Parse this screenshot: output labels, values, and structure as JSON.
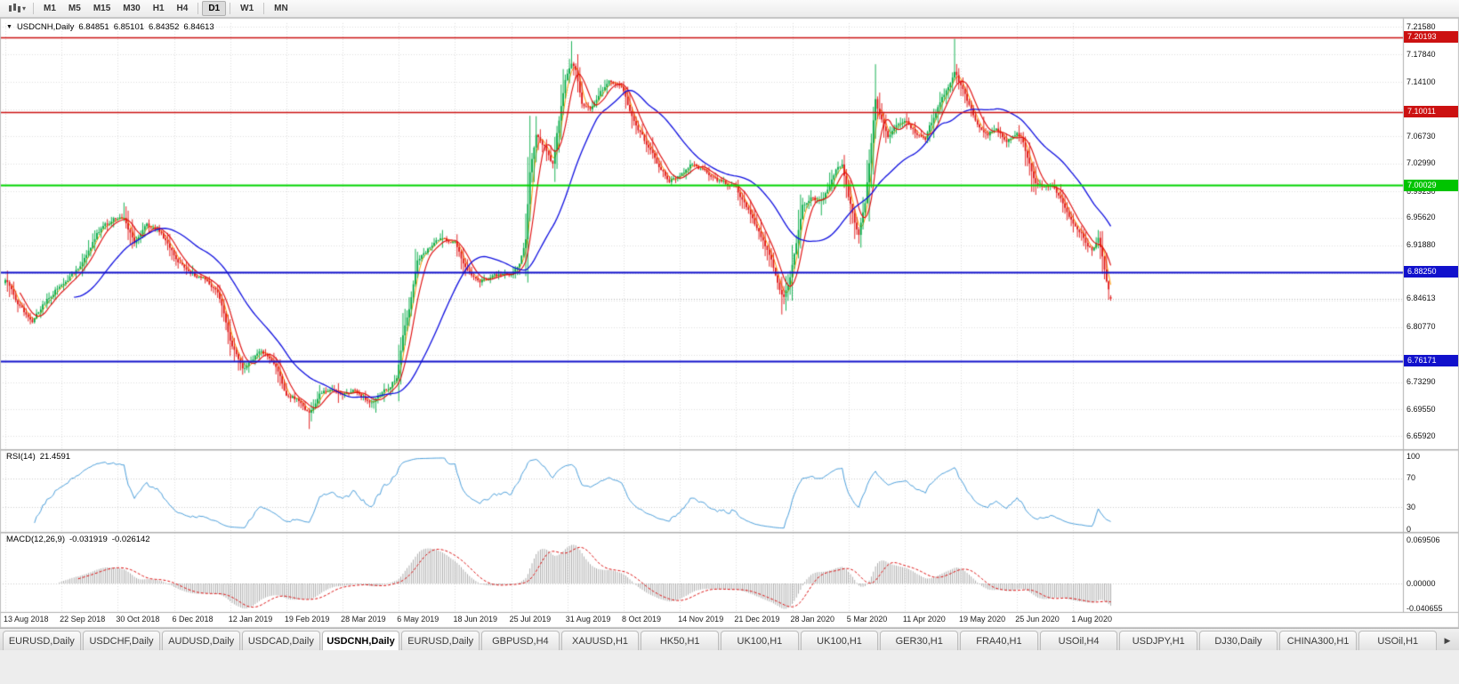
{
  "icons": {
    "caret_down": "▾",
    "title_caret": "▼",
    "scroll_right": "▶"
  },
  "toolbar": {
    "timeframes": [
      {
        "label": "M1",
        "active": false
      },
      {
        "label": "M5",
        "active": false
      },
      {
        "label": "M15",
        "active": false
      },
      {
        "label": "M30",
        "active": false
      },
      {
        "label": "H1",
        "active": false
      },
      {
        "label": "H4",
        "active": false
      },
      {
        "label": "D1",
        "active": true
      },
      {
        "label": "W1",
        "active": false
      },
      {
        "label": "MN",
        "active": false
      }
    ]
  },
  "chart": {
    "symbol_period": "USDCNH,Daily",
    "open": "6.84851",
    "high": "6.85101",
    "low": "6.84352",
    "close": "6.84613"
  },
  "price_axis": {
    "ticks": [
      {
        "label": "7.21580",
        "value": 7.2158
      },
      {
        "label": "7.17840",
        "value": 7.1784
      },
      {
        "label": "7.14100",
        "value": 7.141
      },
      {
        "label": "7.06730",
        "value": 7.0673
      },
      {
        "label": "7.02990",
        "value": 7.0299
      },
      {
        "label": "6.99230",
        "value": 6.9923
      },
      {
        "label": "6.95620",
        "value": 6.9562
      },
      {
        "label": "6.91880",
        "value": 6.9188
      },
      {
        "label": "6.80770",
        "value": 6.8077
      },
      {
        "label": "6.73290",
        "value": 6.7329
      },
      {
        "label": "6.69550",
        "value": 6.6955
      },
      {
        "label": "6.65920",
        "value": 6.6592
      }
    ],
    "badges": [
      {
        "label": "7.20193",
        "value": 7.20193,
        "color": "#CC1111"
      },
      {
        "label": "7.10011",
        "value": 7.10011,
        "color": "#CC1111"
      },
      {
        "label": "7.00029",
        "value": 7.00029,
        "color": "#00C400"
      },
      {
        "label": "6.88250",
        "value": 6.8825,
        "color": "#1111CC"
      },
      {
        "label": "6.76171",
        "value": 6.76171,
        "color": "#1111CC"
      }
    ],
    "current": {
      "label": "6.84613",
      "value": 6.84613
    }
  },
  "rsi_panel": {
    "name": "RSI(14)",
    "value": "21.4591",
    "axis": [
      {
        "label": "100",
        "value": 100
      },
      {
        "label": "70",
        "value": 70
      },
      {
        "label": "30",
        "value": 30
      },
      {
        "label": "0",
        "value": 0
      }
    ]
  },
  "macd_panel": {
    "name": "MACD(12,26,9)",
    "value_main": "-0.031919",
    "value_signal": "-0.026142",
    "axis": [
      {
        "label": "0.069506",
        "value": 0.069506
      },
      {
        "label": "0.00000",
        "value": 0
      },
      {
        "label": "-0.040655",
        "value": -0.040655
      }
    ]
  },
  "date_axis": {
    "labels": [
      "13 Aug 2018",
      "22 Sep 2018",
      "30 Oct 2018",
      "6 Dec 2018",
      "12 Jan 2019",
      "19 Feb 2019",
      "28 Mar 2019",
      "6 May 2019",
      "18 Jun 2019",
      "25 Jul 2019",
      "31 Aug 2019",
      "8 Oct 2019",
      "14 Nov 2019",
      "21 Dec 2019",
      "28 Jan 2020",
      "5 Mar 2020",
      "11 Apr 2020",
      "19 May 2020",
      "25 Jun 2020",
      "1 Aug 2020"
    ],
    "ticks_every_candles": 27
  },
  "chart_data": {
    "type": "candlestick",
    "symbol": "USDCNH",
    "period": "Daily",
    "num_candles": 532,
    "visible_price_range": {
      "top": 7.221,
      "bottom": 6.644
    },
    "grid_prices": [
      7.2158,
      7.1784,
      7.141,
      7.1036,
      7.0673,
      7.0299,
      6.9923,
      6.9562,
      6.9188,
      6.8814,
      6.844,
      6.8077,
      6.7703,
      6.7329,
      6.6955,
      6.6592
    ],
    "last_candle": {
      "open": 6.84851,
      "high": 6.85101,
      "low": 6.84352,
      "close": 6.84613
    },
    "close_waypoints": [
      [
        0,
        6.872
      ],
      [
        6,
        6.84
      ],
      [
        13,
        6.815
      ],
      [
        20,
        6.845
      ],
      [
        27,
        6.868
      ],
      [
        36,
        6.888
      ],
      [
        44,
        6.935
      ],
      [
        52,
        6.955
      ],
      [
        57,
        6.96
      ],
      [
        62,
        6.92
      ],
      [
        68,
        6.945
      ],
      [
        75,
        6.938
      ],
      [
        81,
        6.905
      ],
      [
        88,
        6.882
      ],
      [
        95,
        6.874
      ],
      [
        102,
        6.856
      ],
      [
        108,
        6.79
      ],
      [
        114,
        6.748
      ],
      [
        122,
        6.776
      ],
      [
        127,
        6.765
      ],
      [
        130,
        6.752
      ],
      [
        135,
        6.716
      ],
      [
        140,
        6.71
      ],
      [
        146,
        6.692
      ],
      [
        151,
        6.716
      ],
      [
        158,
        6.724
      ],
      [
        162,
        6.712
      ],
      [
        168,
        6.72
      ],
      [
        176,
        6.704
      ],
      [
        184,
        6.726
      ],
      [
        188,
        6.74
      ],
      [
        191,
        6.795
      ],
      [
        194,
        6.83
      ],
      [
        198,
        6.9
      ],
      [
        204,
        6.917
      ],
      [
        210,
        6.928
      ],
      [
        216,
        6.924
      ],
      [
        222,
        6.882
      ],
      [
        228,
        6.868
      ],
      [
        234,
        6.877
      ],
      [
        243,
        6.879
      ],
      [
        247,
        6.895
      ],
      [
        250,
        6.93
      ],
      [
        252,
        7.02
      ],
      [
        255,
        7.07
      ],
      [
        259,
        7.055
      ],
      [
        263,
        7.03
      ],
      [
        266,
        7.09
      ],
      [
        269,
        7.145
      ],
      [
        272,
        7.168
      ],
      [
        274,
        7.155
      ],
      [
        277,
        7.11
      ],
      [
        281,
        7.105
      ],
      [
        285,
        7.125
      ],
      [
        290,
        7.142
      ],
      [
        296,
        7.135
      ],
      [
        301,
        7.095
      ],
      [
        307,
        7.062
      ],
      [
        313,
        7.03
      ],
      [
        319,
        7.005
      ],
      [
        324,
        7.012
      ],
      [
        329,
        7.028
      ],
      [
        335,
        7.022
      ],
      [
        341,
        7.008
      ],
      [
        347,
        7.002
      ],
      [
        351,
        6.998
      ],
      [
        356,
        6.972
      ],
      [
        362,
        6.937
      ],
      [
        368,
        6.896
      ],
      [
        372,
        6.862
      ],
      [
        374,
        6.848
      ],
      [
        377,
        6.875
      ],
      [
        380,
        6.922
      ],
      [
        383,
        6.972
      ],
      [
        387,
        6.985
      ],
      [
        391,
        6.978
      ],
      [
        395,
        6.992
      ],
      [
        399,
        7.022
      ],
      [
        402,
        7.028
      ],
      [
        405,
        6.988
      ],
      [
        408,
        6.948
      ],
      [
        410,
        6.935
      ],
      [
        413,
        6.975
      ],
      [
        416,
        7.06
      ],
      [
        418,
        7.115
      ],
      [
        420,
        7.095
      ],
      [
        424,
        7.065
      ],
      [
        428,
        7.082
      ],
      [
        432,
        7.092
      ],
      [
        437,
        7.072
      ],
      [
        442,
        7.065
      ],
      [
        447,
        7.1
      ],
      [
        452,
        7.13
      ],
      [
        456,
        7.155
      ],
      [
        459,
        7.135
      ],
      [
        463,
        7.11
      ],
      [
        467,
        7.085
      ],
      [
        472,
        7.07
      ],
      [
        476,
        7.078
      ],
      [
        481,
        7.062
      ],
      [
        486,
        7.072
      ],
      [
        489,
        7.06
      ],
      [
        492,
        7.03
      ],
      [
        495,
        7.005
      ],
      [
        499,
        6.998
      ],
      [
        503,
        7.002
      ],
      [
        507,
        6.985
      ],
      [
        511,
        6.962
      ],
      [
        513,
        6.952
      ],
      [
        516,
        6.94
      ],
      [
        519,
        6.925
      ],
      [
        522,
        6.912
      ],
      [
        525,
        6.928
      ],
      [
        527,
        6.9
      ],
      [
        529,
        6.872
      ],
      [
        531,
        6.846
      ]
    ],
    "spikes": [
      {
        "i": 57,
        "high": 6.977
      },
      {
        "i": 146,
        "low": 6.669
      },
      {
        "i": 272,
        "high": 7.1965
      },
      {
        "i": 374,
        "low": 6.8402
      },
      {
        "i": 418,
        "high": 7.1651
      },
      {
        "i": 456,
        "high": 7.1995
      }
    ],
    "candle_colors": {
      "up": "#00AA44",
      "down": "#E01111"
    },
    "moving_averages": [
      {
        "period": 4,
        "color": "#FF9900",
        "width": 1.0,
        "under_candles": true
      },
      {
        "period": 8,
        "color": "#E01010",
        "width": 1.15,
        "under_candles": false
      },
      {
        "period": 34,
        "color": "#1010E0",
        "width": 1.3,
        "under_candles": false
      }
    ],
    "horizontal_lines": [
      {
        "value": 7.20193,
        "color": "#CC1111",
        "width": 1.5
      },
      {
        "value": 7.10011,
        "color": "#CC1111",
        "width": 1.5
      },
      {
        "value": 7.00029,
        "color": "#00D400",
        "width": 2
      },
      {
        "value": 6.8825,
        "color": "#1111CC",
        "width": 2
      },
      {
        "value": 6.76171,
        "color": "#1111CC",
        "width": 2
      }
    ],
    "current_price_line": {
      "value": 6.84613,
      "color": "#b8b8b8"
    },
    "rsi": {
      "period": 14,
      "color": "#4DA0DC",
      "guide_levels": [
        70,
        30
      ]
    },
    "macd": {
      "fast": 12,
      "slow": 26,
      "signal": 9,
      "histogram_color": "#9a9a9a",
      "signal_color": "#DD1111"
    }
  },
  "tabs": [
    {
      "label": "EURUSD,Daily",
      "active": false
    },
    {
      "label": "USDCHF,Daily",
      "active": false
    },
    {
      "label": "AUDUSD,Daily",
      "active": false
    },
    {
      "label": "USDCAD,Daily",
      "active": false
    },
    {
      "label": "USDCNH,Daily",
      "active": true
    },
    {
      "label": "EURUSD,Daily",
      "active": false
    },
    {
      "label": "GBPUSD,H4",
      "active": false
    },
    {
      "label": "XAUUSD,H1",
      "active": false
    },
    {
      "label": "HK50,H1",
      "active": false
    },
    {
      "label": "UK100,H1",
      "active": false
    },
    {
      "label": "UK100,H1",
      "active": false
    },
    {
      "label": "GER30,H1",
      "active": false
    },
    {
      "label": "FRA40,H1",
      "active": false
    },
    {
      "label": "USOil,H4",
      "active": false
    },
    {
      "label": "USDJPY,H1",
      "active": false
    },
    {
      "label": "DJ30,Daily",
      "active": false
    },
    {
      "label": "CHINA300,H1",
      "active": false
    },
    {
      "label": "USOil,H1",
      "active": false
    }
  ]
}
